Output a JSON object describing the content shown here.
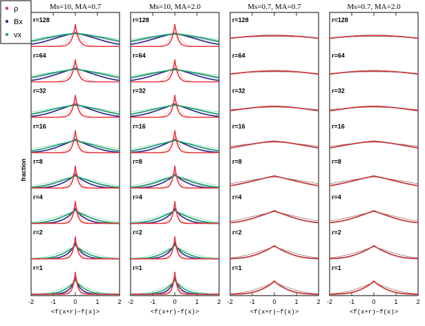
{
  "chart_data": {
    "type": "line",
    "ylabel": "fraction",
    "xlim": [
      -2,
      2
    ],
    "xticks": [
      -2,
      -1,
      0,
      1,
      2
    ],
    "legend": {
      "placement": "top-left",
      "entries": [
        {
          "name": "ρ",
          "color": "#e8333a"
        },
        {
          "name": "Bx",
          "color": "#2e2a8c"
        },
        {
          "name": "vx",
          "color": "#1aa66a"
        }
      ]
    },
    "row_labels": [
      "r=128",
      "r=64",
      "r=32",
      "r=16",
      "r=8",
      "r=4",
      "r=2",
      "r=1"
    ],
    "panels": [
      {
        "title": "Ms=10, MA=0.7",
        "xlabel": "<f(x+r)−f(x)>",
        "xlim": [
          -2,
          2
        ],
        "rows": [
          {
            "r": 128,
            "rho": {
              "w": 0.22,
              "k": 0.9,
              "h": 1.0
            },
            "bx": {
              "w": 1.1,
              "k": 0.25,
              "h": 0.62
            },
            "vx": {
              "w": 1.6,
              "k": 0.15,
              "h": 0.6
            }
          },
          {
            "r": 64,
            "rho": {
              "w": 0.22,
              "k": 0.9,
              "h": 1.0
            },
            "bx": {
              "w": 1.0,
              "k": 0.3,
              "h": 0.62
            },
            "vx": {
              "w": 1.5,
              "k": 0.2,
              "h": 0.58
            }
          },
          {
            "r": 32,
            "rho": {
              "w": 0.2,
              "k": 0.9,
              "h": 1.0
            },
            "bx": {
              "w": 0.9,
              "k": 0.3,
              "h": 0.6
            },
            "vx": {
              "w": 1.3,
              "k": 0.2,
              "h": 0.56
            }
          },
          {
            "r": 16,
            "rho": {
              "w": 0.18,
              "k": 0.9,
              "h": 1.0
            },
            "bx": {
              "w": 0.8,
              "k": 0.4,
              "h": 0.6
            },
            "vx": {
              "w": 1.1,
              "k": 0.3,
              "h": 0.56
            }
          },
          {
            "r": 8,
            "rho": {
              "w": 0.17,
              "k": 0.9,
              "h": 1.0
            },
            "bx": {
              "w": 0.6,
              "k": 0.6,
              "h": 0.62
            },
            "vx": {
              "w": 0.9,
              "k": 0.4,
              "h": 0.56
            }
          },
          {
            "r": 4,
            "rho": {
              "w": 0.17,
              "k": 0.9,
              "h": 1.0
            },
            "bx": {
              "w": 0.5,
              "k": 0.7,
              "h": 0.66
            },
            "vx": {
              "w": 0.75,
              "k": 0.5,
              "h": 0.6
            }
          },
          {
            "r": 2,
            "rho": {
              "w": 0.17,
              "k": 0.9,
              "h": 1.0
            },
            "bx": {
              "w": 0.42,
              "k": 0.8,
              "h": 0.7
            },
            "vx": {
              "w": 0.6,
              "k": 0.6,
              "h": 0.62
            }
          },
          {
            "r": 1,
            "rho": {
              "w": 0.16,
              "k": 0.9,
              "h": 1.0
            },
            "bx": {
              "w": 0.35,
              "k": 0.9,
              "h": 0.72
            },
            "vx": {
              "w": 0.5,
              "k": 0.7,
              "h": 0.64
            }
          }
        ]
      },
      {
        "title": "Ms=10, MA=2.0",
        "xlabel": "<f(x+r)−f(x)>",
        "xlim": [
          -2,
          2
        ],
        "rows": [
          {
            "r": 128,
            "rho": {
              "w": 0.2,
              "k": 0.9,
              "h": 1.0
            },
            "bx": {
              "w": 1.1,
              "k": 0.25,
              "h": 0.6
            },
            "vx": {
              "w": 1.6,
              "k": 0.15,
              "h": 0.58
            }
          },
          {
            "r": 64,
            "rho": {
              "w": 0.2,
              "k": 0.9,
              "h": 1.0
            },
            "bx": {
              "w": 1.0,
              "k": 0.3,
              "h": 0.6
            },
            "vx": {
              "w": 1.5,
              "k": 0.2,
              "h": 0.56
            }
          },
          {
            "r": 32,
            "rho": {
              "w": 0.19,
              "k": 0.9,
              "h": 1.0
            },
            "bx": {
              "w": 0.9,
              "k": 0.35,
              "h": 0.6
            },
            "vx": {
              "w": 1.3,
              "k": 0.25,
              "h": 0.56
            }
          },
          {
            "r": 16,
            "rho": {
              "w": 0.18,
              "k": 0.9,
              "h": 1.0
            },
            "bx": {
              "w": 0.75,
              "k": 0.4,
              "h": 0.6
            },
            "vx": {
              "w": 1.1,
              "k": 0.3,
              "h": 0.56
            }
          },
          {
            "r": 8,
            "rho": {
              "w": 0.17,
              "k": 0.9,
              "h": 1.0
            },
            "bx": {
              "w": 0.6,
              "k": 0.6,
              "h": 0.62
            },
            "vx": {
              "w": 0.9,
              "k": 0.4,
              "h": 0.58
            }
          },
          {
            "r": 4,
            "rho": {
              "w": 0.16,
              "k": 0.9,
              "h": 1.0
            },
            "bx": {
              "w": 0.5,
              "k": 0.7,
              "h": 0.66
            },
            "vx": {
              "w": 0.75,
              "k": 0.5,
              "h": 0.6
            }
          },
          {
            "r": 2,
            "rho": {
              "w": 0.16,
              "k": 0.9,
              "h": 1.0
            },
            "bx": {
              "w": 0.42,
              "k": 0.8,
              "h": 0.7
            },
            "vx": {
              "w": 0.6,
              "k": 0.6,
              "h": 0.62
            }
          },
          {
            "r": 1,
            "rho": {
              "w": 0.15,
              "k": 0.9,
              "h": 1.0
            },
            "bx": {
              "w": 0.35,
              "k": 0.9,
              "h": 0.72
            },
            "vx": {
              "w": 0.5,
              "k": 0.7,
              "h": 0.64
            }
          }
        ]
      },
      {
        "title": "Ms=0.7, MA=0.7",
        "xlabel": "<f(x+r)−f(x)>",
        "xlim": [
          -2,
          2
        ],
        "rows": [
          {
            "r": 128,
            "rho": {
              "w": 2.6,
              "k": 0.0,
              "h": 0.5
            },
            "bx": {
              "w": 2.6,
              "k": 0.0,
              "h": 0.5
            },
            "vx": {
              "w": 2.6,
              "k": 0.0,
              "h": 0.5
            }
          },
          {
            "r": 64,
            "rho": {
              "w": 2.4,
              "k": 0.0,
              "h": 0.5
            },
            "bx": {
              "w": 2.4,
              "k": 0.0,
              "h": 0.5
            },
            "vx": {
              "w": 2.4,
              "k": 0.0,
              "h": 0.5
            }
          },
          {
            "r": 32,
            "rho": {
              "w": 2.0,
              "k": 0.05,
              "h": 0.5
            },
            "bx": {
              "w": 2.0,
              "k": 0.05,
              "h": 0.5
            },
            "vx": {
              "w": 2.0,
              "k": 0.05,
              "h": 0.5
            }
          },
          {
            "r": 16,
            "rho": {
              "w": 1.6,
              "k": 0.15,
              "h": 0.52
            },
            "bx": {
              "w": 1.6,
              "k": 0.15,
              "h": 0.52
            },
            "vx": {
              "w": 1.6,
              "k": 0.15,
              "h": 0.52
            }
          },
          {
            "r": 8,
            "rho": {
              "w": 1.2,
              "k": 0.3,
              "h": 0.55
            },
            "bx": {
              "w": 1.2,
              "k": 0.3,
              "h": 0.55
            },
            "vx": {
              "w": 1.2,
              "k": 0.3,
              "h": 0.55
            }
          },
          {
            "r": 4,
            "rho": {
              "w": 0.9,
              "k": 0.4,
              "h": 0.58
            },
            "bx": {
              "w": 0.9,
              "k": 0.4,
              "h": 0.58
            },
            "vx": {
              "w": 0.9,
              "k": 0.4,
              "h": 0.58
            }
          },
          {
            "r": 2,
            "rho": {
              "w": 0.7,
              "k": 0.5,
              "h": 0.6
            },
            "bx": {
              "w": 0.7,
              "k": 0.5,
              "h": 0.6
            },
            "vx": {
              "w": 0.7,
              "k": 0.5,
              "h": 0.6
            }
          },
          {
            "r": 1,
            "rho": {
              "w": 0.6,
              "k": 0.6,
              "h": 0.6
            },
            "bx": {
              "w": 0.6,
              "k": 0.6,
              "h": 0.6
            },
            "vx": {
              "w": 0.6,
              "k": 0.6,
              "h": 0.6
            }
          }
        ]
      },
      {
        "title": "Ms=0.7, MA=2.0",
        "xlabel": "<f(x+r)−f(x)>",
        "xlim": [
          -2,
          2
        ],
        "rows": [
          {
            "r": 128,
            "rho": {
              "w": 2.6,
              "k": 0.0,
              "h": 0.5
            },
            "bx": {
              "w": 2.6,
              "k": 0.0,
              "h": 0.5
            },
            "vx": {
              "w": 2.6,
              "k": 0.0,
              "h": 0.5
            }
          },
          {
            "r": 64,
            "rho": {
              "w": 2.4,
              "k": 0.0,
              "h": 0.5
            },
            "bx": {
              "w": 2.4,
              "k": 0.0,
              "h": 0.5
            },
            "vx": {
              "w": 2.4,
              "k": 0.0,
              "h": 0.5
            }
          },
          {
            "r": 32,
            "rho": {
              "w": 2.0,
              "k": 0.05,
              "h": 0.5
            },
            "bx": {
              "w": 2.0,
              "k": 0.05,
              "h": 0.5
            },
            "vx": {
              "w": 2.0,
              "k": 0.05,
              "h": 0.5
            }
          },
          {
            "r": 16,
            "rho": {
              "w": 1.6,
              "k": 0.15,
              "h": 0.52
            },
            "bx": {
              "w": 1.6,
              "k": 0.15,
              "h": 0.52
            },
            "vx": {
              "w": 1.6,
              "k": 0.15,
              "h": 0.52
            }
          },
          {
            "r": 8,
            "rho": {
              "w": 1.2,
              "k": 0.3,
              "h": 0.55
            },
            "bx": {
              "w": 1.2,
              "k": 0.3,
              "h": 0.55
            },
            "vx": {
              "w": 1.2,
              "k": 0.3,
              "h": 0.55
            }
          },
          {
            "r": 4,
            "rho": {
              "w": 0.9,
              "k": 0.4,
              "h": 0.58
            },
            "bx": {
              "w": 0.9,
              "k": 0.4,
              "h": 0.58
            },
            "vx": {
              "w": 0.9,
              "k": 0.4,
              "h": 0.58
            }
          },
          {
            "r": 2,
            "rho": {
              "w": 0.7,
              "k": 0.5,
              "h": 0.6
            },
            "bx": {
              "w": 0.7,
              "k": 0.5,
              "h": 0.6
            },
            "vx": {
              "w": 0.7,
              "k": 0.5,
              "h": 0.6
            }
          },
          {
            "r": 1,
            "rho": {
              "w": 0.6,
              "k": 0.6,
              "h": 0.6
            },
            "bx": {
              "w": 0.6,
              "k": 0.6,
              "h": 0.6
            },
            "vx": {
              "w": 0.6,
              "k": 0.6,
              "h": 0.6
            }
          }
        ]
      }
    ]
  }
}
